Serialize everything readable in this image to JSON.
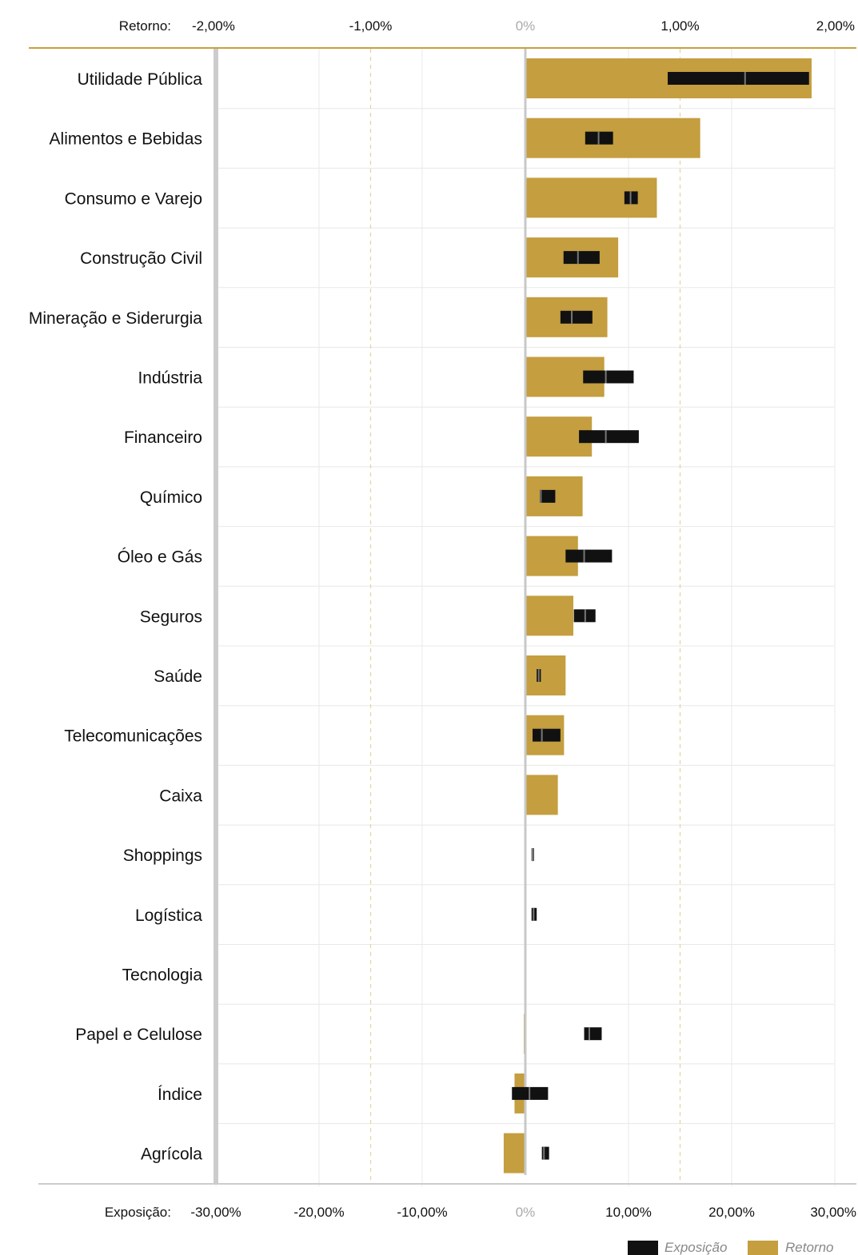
{
  "chart_data": {
    "type": "bar",
    "orientation": "horizontal",
    "top_axis": {
      "label": "Retorno:",
      "ticks": [
        "-2,00%",
        "-1,00%",
        "0%",
        "1,00%",
        "2,00%"
      ],
      "tick_values": [
        -2.0,
        -1.0,
        0.0,
        1.0,
        2.0
      ],
      "range": [
        -2.0,
        2.0
      ],
      "unit": "%"
    },
    "bottom_axis": {
      "label": "Exposição:",
      "ticks": [
        "-30,00%",
        "-20,00%",
        "-10,00%",
        "0%",
        "10,00%",
        "20,00%",
        "30,00%"
      ],
      "tick_values": [
        -30,
        -20,
        -10,
        0,
        10,
        20,
        30
      ],
      "range": [
        -30,
        30
      ],
      "unit": "%"
    },
    "categories": [
      "Utilidade Pública",
      "Alimentos e Bebidas",
      "Consumo e Varejo",
      "Construção Civil",
      "Mineração e Siderurgia",
      "Indústria",
      "Financeiro",
      "Químico",
      "Óleo e Gás",
      "Seguros",
      "Saúde",
      "Telecomunicações",
      "Caixa",
      "Shoppings",
      "Logística",
      "Tecnologia",
      "Papel e Celulose",
      "Índice",
      "Agrícola"
    ],
    "series": [
      {
        "name": "Retorno",
        "axis": "top",
        "color": "#c49e3f",
        "values": [
          1.85,
          1.13,
          0.85,
          0.6,
          0.53,
          0.51,
          0.43,
          0.37,
          0.34,
          0.31,
          0.26,
          0.25,
          0.21,
          0.0,
          0.0,
          0.0,
          -0.01,
          -0.07,
          -0.14
        ]
      },
      {
        "name": "Exposição",
        "axis": "bottom",
        "color": "#111111",
        "ranges": [
          [
            13.8,
            27.5
          ],
          [
            5.8,
            8.5
          ],
          [
            9.6,
            10.9
          ],
          [
            3.7,
            7.2
          ],
          [
            3.4,
            6.5
          ],
          [
            5.6,
            10.5
          ],
          [
            5.2,
            11.0
          ],
          [
            1.4,
            2.9
          ],
          [
            3.9,
            8.4
          ],
          [
            4.7,
            6.8
          ],
          [
            1.1,
            1.5
          ],
          [
            0.7,
            3.4
          ],
          [
            0.0,
            0.0
          ],
          [
            0.6,
            0.8
          ],
          [
            0.6,
            1.1
          ],
          [
            0.0,
            0.0
          ],
          [
            5.7,
            7.4
          ],
          [
            -1.3,
            2.2
          ],
          [
            1.6,
            2.3
          ]
        ],
        "marks": [
          21.3,
          7.1,
          10.2,
          5.1,
          4.5,
          7.8,
          7.8,
          1.5,
          5.7,
          5.8,
          1.3,
          1.6,
          null,
          0.7,
          0.8,
          null,
          6.2,
          0.4,
          1.8
        ]
      }
    ],
    "legend": {
      "position": "bottom-right",
      "items": [
        {
          "label": "Exposição",
          "color": "#111111"
        },
        {
          "label": "Retorno",
          "color": "#c49e3f"
        }
      ]
    },
    "grid": true
  }
}
